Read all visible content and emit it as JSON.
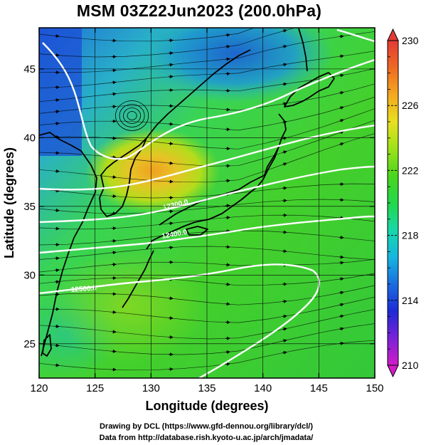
{
  "title": "MSM 03Z22Jun2023 (200.0hPa)",
  "x_axis": {
    "label": "Longitude (degrees)",
    "range": [
      120,
      150
    ],
    "ticks": [
      120,
      125,
      130,
      135,
      140,
      145,
      150
    ],
    "tick_labels": [
      "120",
      "125",
      "130",
      "135",
      "140",
      "145",
      "150"
    ]
  },
  "y_axis": {
    "label": "Latitude  (degrees)",
    "range": [
      22.5,
      48
    ],
    "ticks": [
      25,
      30,
      35,
      40,
      45
    ],
    "tick_labels": [
      "25",
      "30",
      "35",
      "40",
      "45"
    ]
  },
  "colorbar": {
    "min": 210,
    "max": 230,
    "ticks": [
      210,
      214,
      218,
      222,
      226,
      230
    ],
    "tick_labels": [
      "210",
      "214",
      "218",
      "222",
      "226",
      "230"
    ],
    "colors": [
      "#d21cc8",
      "#7a22d8",
      "#1e2ad6",
      "#1a6ee0",
      "#16b6e0",
      "#18d8a8",
      "#22d84a",
      "#4ad61e",
      "#9ee21a",
      "#e8e020",
      "#f4a820",
      "#ee6a22",
      "#e43a36"
    ]
  },
  "contour_labels": [
    "12300.0",
    "12400.0",
    "12500.0"
  ],
  "credits": {
    "line1": "Drawing by DCL (https://www.gfd-dennou.org/library/dcl/)",
    "line2": "Data from http://database.rish.kyoto-u.ac.jp/arch/jmadata/"
  }
}
